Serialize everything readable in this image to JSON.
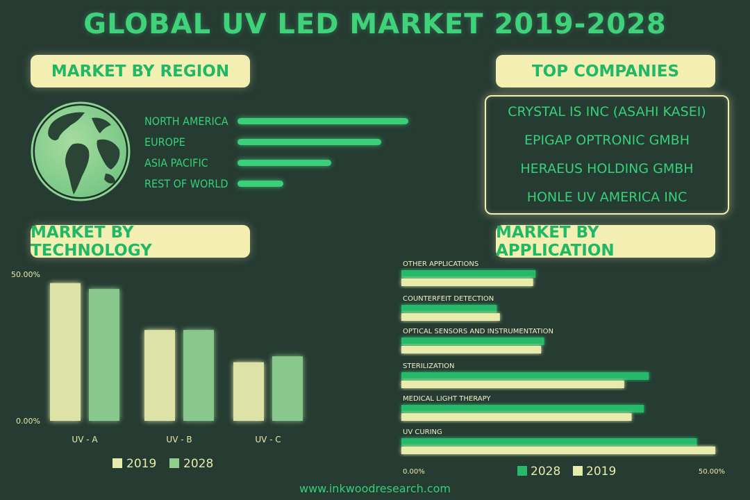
{
  "title": "GLOBAL UV LED MARKET 2019-2028",
  "sections": {
    "region": "MARKET BY REGION",
    "companies": "TOP COMPANIES",
    "technology": "MARKET BY TECHNOLOGY",
    "application": "MARKET BY APPLICATION"
  },
  "companies": [
    "CRYSTAL IS INC (ASAHI KASEI)",
    "EPIGAP OPTRONIC GMBH",
    "HERAEUS HOLDING GMBH",
    "HONLE UV AMERICA INC"
  ],
  "footer": "www.inkwoodresearch.com",
  "colors": {
    "background": "#263b32",
    "accent_green": "#3ccf7a",
    "pale_yellow": "#f3efb3",
    "bar_2019": "#e7ecad",
    "bar_2028": "#8fd091",
    "app_2028": "#27b96a"
  },
  "icons": {
    "globe": "globe-icon"
  },
  "chart_data": [
    {
      "type": "bar",
      "orientation": "horizontal",
      "categories": [
        "NORTH AMERICA",
        "EUROPE",
        "ASIA PACIFIC",
        "REST OF WORLD"
      ],
      "values": [
        100,
        84,
        55,
        27
      ]
    },
    {
      "type": "bar",
      "categories": [
        "UV - A",
        "UV - B",
        "UV - C"
      ],
      "series": [
        {
          "name": "2019",
          "values": [
            47,
            31,
            20
          ]
        },
        {
          "name": "2028",
          "values": [
            45,
            31,
            22
          ]
        }
      ],
      "ylim": [
        0,
        50
      ],
      "ytick_labels": [
        "0.00%",
        "50.00%"
      ],
      "legend": "bottom"
    },
    {
      "type": "bar",
      "orientation": "horizontal",
      "categories": [
        "OTHER APPLICATIONS",
        "COUNTERFEIT DETECTION",
        "OPTICAL SENSORS AND INSTRUMENTATION",
        "STERILIZATION",
        "MEDICAL LIGHT THERAPY",
        "UV CURING"
      ],
      "series": [
        {
          "name": "2028",
          "values": [
            21.8,
            15.5,
            23.2,
            40.2,
            39.4,
            48
          ]
        },
        {
          "name": "2019",
          "values": [
            21.4,
            16,
            22.7,
            36.2,
            37.4,
            51
          ]
        }
      ],
      "xlim": [
        0,
        51
      ],
      "xtick_labels": [
        "0.00%",
        "50.00%"
      ],
      "legend": "bottom"
    }
  ]
}
